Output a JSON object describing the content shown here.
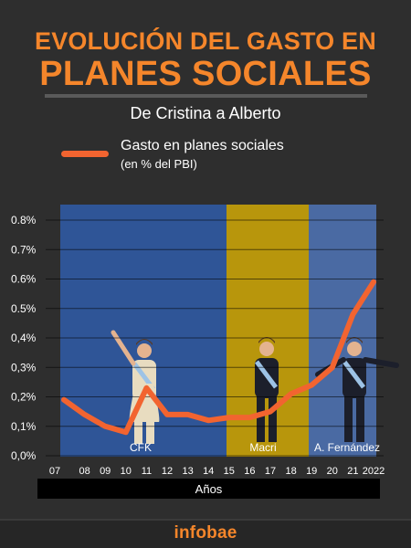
{
  "header": {
    "title_line1": "EVOLUCIÓN DEL GASTO EN",
    "title_line2": "PLANES SOCIALES",
    "subtitle": "De Cristina a Alberto"
  },
  "legend": {
    "series_label": "Gasto en planes sociales",
    "series_sublabel": "(en % del PBI)",
    "color": "#f26430"
  },
  "chart_data": {
    "type": "line",
    "x": [
      "07",
      "08",
      "09",
      "10",
      "11",
      "12",
      "13",
      "14",
      "15",
      "16",
      "17",
      "18",
      "19",
      "20",
      "21",
      "2022"
    ],
    "series": [
      {
        "name": "Gasto en planes sociales",
        "values": [
          0.19,
          0.14,
          0.1,
          0.08,
          0.23,
          0.14,
          0.14,
          0.12,
          0.13,
          0.13,
          0.15,
          0.21,
          0.24,
          0.3,
          0.48,
          0.59
        ]
      }
    ],
    "y_ticks": [
      "0,0%",
      "0,1%",
      "0,2%",
      "0,3%",
      "0,4%",
      "0.5%",
      "0.6%",
      "0.7%",
      "0.8%"
    ],
    "ylim": [
      0,
      0.8
    ],
    "xlabel": "Años",
    "grid": true,
    "periods": [
      {
        "label": "CFK",
        "from": "07",
        "to": "15",
        "color": "#2f5597"
      },
      {
        "label": "Macri",
        "from": "16",
        "to": "19",
        "color": "#b8960c"
      },
      {
        "label": "A. Fernández",
        "from": "20",
        "to": "2022",
        "color": "#4a6aa3"
      }
    ]
  },
  "footer": {
    "brand": "infobae"
  }
}
